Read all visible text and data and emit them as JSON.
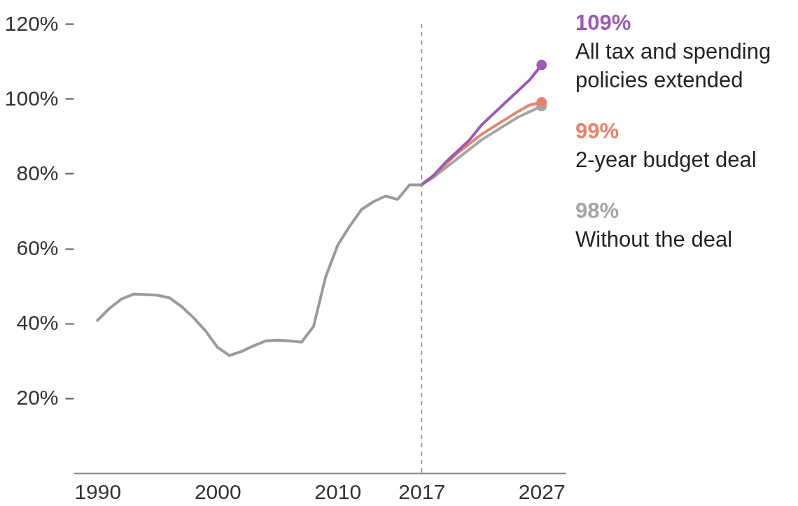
{
  "chart_data": {
    "type": "line",
    "xlim": [
      1988,
      2029
    ],
    "xticks": [
      1990,
      2000,
      2010,
      2017,
      2027
    ],
    "ylim": [
      0,
      120
    ],
    "yticks": [
      {
        "value": 20,
        "label": "20%"
      },
      {
        "value": 40,
        "label": "40%"
      },
      {
        "value": 60,
        "label": "60%"
      },
      {
        "value": 80,
        "label": "80%"
      },
      {
        "value": 100,
        "label": "100%"
      },
      {
        "value": 120,
        "label": "120%"
      }
    ],
    "grid": false,
    "line_style": "solid",
    "marker": "none",
    "series": [
      {
        "color": "#9b9b9b",
        "x": [
          1990,
          1991,
          1992,
          1993,
          1994,
          1995,
          1996,
          1997,
          1998,
          1999,
          2000,
          2001,
          2002,
          2003,
          2004,
          2005,
          2006,
          2007,
          2008,
          2009,
          2010,
          2011,
          2012,
          2013,
          2014,
          2015,
          2016,
          2017
        ],
        "values": [
          40.8,
          44.0,
          46.5,
          47.8,
          47.7,
          47.5,
          46.8,
          44.5,
          41.5,
          38.0,
          33.6,
          31.4,
          32.5,
          34.0,
          35.3,
          35.5,
          35.3,
          35.0,
          39.2,
          52.3,
          60.8,
          65.9,
          70.4,
          72.5,
          74.0,
          73.1,
          77.0,
          77.0
        ]
      },
      {
        "name": "All tax and spending policies extended",
        "color": "#9b59b6",
        "x": [
          2017,
          2018,
          2019,
          2020,
          2021,
          2022,
          2023,
          2024,
          2025,
          2026,
          2027
        ],
        "values": [
          77,
          79.5,
          83,
          86,
          89,
          93,
          96,
          99,
          102,
          105,
          109
        ]
      },
      {
        "name": "2-year budget deal",
        "color": "#e8826a",
        "x": [
          2017,
          2018,
          2019,
          2020,
          2021,
          2022,
          2023,
          2024,
          2025,
          2026,
          2027
        ],
        "values": [
          77,
          79.5,
          82.5,
          85.5,
          88,
          90.5,
          92.5,
          94.5,
          96.5,
          98.3,
          99
        ]
      },
      {
        "name": "Without the deal",
        "color": "#a5a5a5",
        "x": [
          2017,
          2018,
          2019,
          2020,
          2021,
          2022,
          2023,
          2024,
          2025,
          2026,
          2027
        ],
        "values": [
          77,
          79,
          81.5,
          84,
          86.5,
          89,
          91,
          93,
          95,
          96.5,
          98
        ]
      },
      {
        "type": "scatter",
        "marker": "circle",
        "color": "#a5a5a5",
        "x": [
          2027
        ],
        "values": [
          98
        ]
      },
      {
        "type": "scatter",
        "marker": "circle",
        "color": "#e8826a",
        "x": [
          2027
        ],
        "values": [
          99
        ]
      },
      {
        "type": "scatter",
        "marker": "circle",
        "color": "#9b59b6",
        "x": [
          2027
        ],
        "values": [
          109
        ]
      }
    ],
    "ref_lines": [
      {
        "axis": "x",
        "value": 2017,
        "color": "#999999",
        "line_style": "dashed"
      }
    ],
    "annotations": [
      "109%",
      "99%",
      "98%"
    ]
  }
}
